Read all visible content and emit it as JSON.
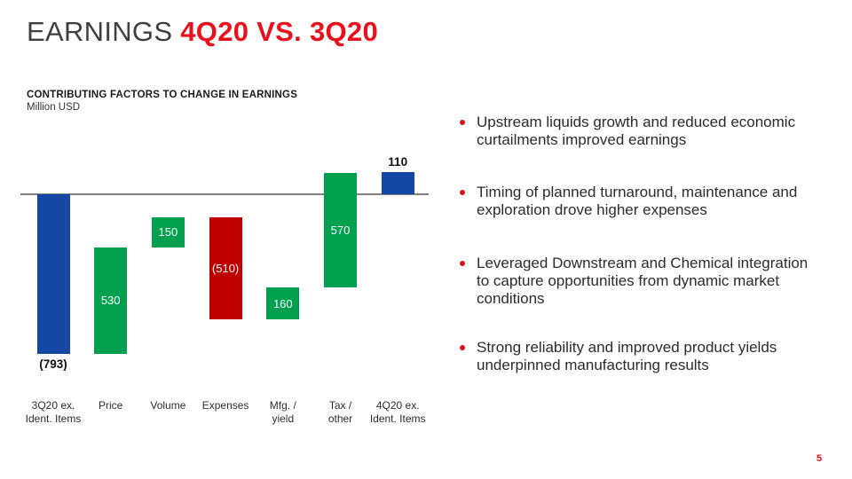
{
  "header": {
    "title_black": "EARNINGS ",
    "title_red": "4Q20 VS. 3Q20"
  },
  "chart": {
    "title": "CONTRIBUTING FACTORS TO CHANGE IN EARNINGS",
    "subtitle": "Million USD"
  },
  "chart_data": {
    "type": "bar",
    "subtype": "waterfall",
    "title": "CONTRIBUTING FACTORS TO CHANGE IN EARNINGS",
    "unit": "Million USD",
    "categories": [
      "3Q20 ex. Ident. Items",
      "Price",
      "Volume",
      "Expenses",
      "Mfg. / yield",
      "Tax / other",
      "4Q20 ex. Ident. Items"
    ],
    "values": [
      -793,
      530,
      150,
      -510,
      160,
      570,
      110
    ],
    "bars": [
      {
        "key": "3q20-ex-ident-items",
        "label_lines": [
          "3Q20 ex.",
          "Ident. Items"
        ],
        "value": -793,
        "display": "(793)",
        "kind": "total",
        "color": "blue",
        "value_label_pos": "below"
      },
      {
        "key": "price",
        "label_lines": [
          "Price"
        ],
        "value": 530,
        "display": "530",
        "kind": "delta",
        "color": "green",
        "value_label_pos": "inside"
      },
      {
        "key": "volume",
        "label_lines": [
          "Volume"
        ],
        "value": 150,
        "display": "150",
        "kind": "delta",
        "color": "green",
        "value_label_pos": "inside"
      },
      {
        "key": "expenses",
        "label_lines": [
          "Expenses"
        ],
        "value": -510,
        "display": "(510)",
        "kind": "delta",
        "color": "red",
        "value_label_pos": "inside"
      },
      {
        "key": "mfg-yield",
        "label_lines": [
          "Mfg. /",
          "yield"
        ],
        "value": 160,
        "display": "160",
        "kind": "delta",
        "color": "green",
        "value_label_pos": "inside"
      },
      {
        "key": "tax-other",
        "label_lines": [
          "Tax /",
          "other"
        ],
        "value": 570,
        "display": "570",
        "kind": "delta",
        "color": "green",
        "value_label_pos": "inside"
      },
      {
        "key": "4q20-ex-ident-items",
        "label_lines": [
          "4Q20 ex.",
          "Ident. Items"
        ],
        "value": 110,
        "display": "110",
        "kind": "total",
        "color": "blue",
        "value_label_pos": "above"
      }
    ],
    "colors": {
      "blue": "#1547a5",
      "green": "#00a04e",
      "red": "#c00000",
      "axis": "#808080"
    },
    "axis": {
      "zero_line": true,
      "gridlines": false,
      "legend": "none"
    }
  },
  "bullets": [
    {
      "text": "Upstream liquids growth and reduced economic curtailments improved earnings"
    },
    {
      "text": "Timing of planned turnaround, maintenance and exploration drove higher expenses"
    },
    {
      "text": "Leveraged Downstream and Chemical integration to capture opportunities from dynamic market conditions"
    },
    {
      "text": "Strong reliability and improved product yields underpinned manufacturing results"
    }
  ],
  "footer": {
    "page_number": "5"
  },
  "theme": {
    "accent_red": "#e8101c",
    "bullet_red": "#d6131d",
    "title_gray": "#3f3f3f",
    "text_dark": "#2b2b2b"
  }
}
